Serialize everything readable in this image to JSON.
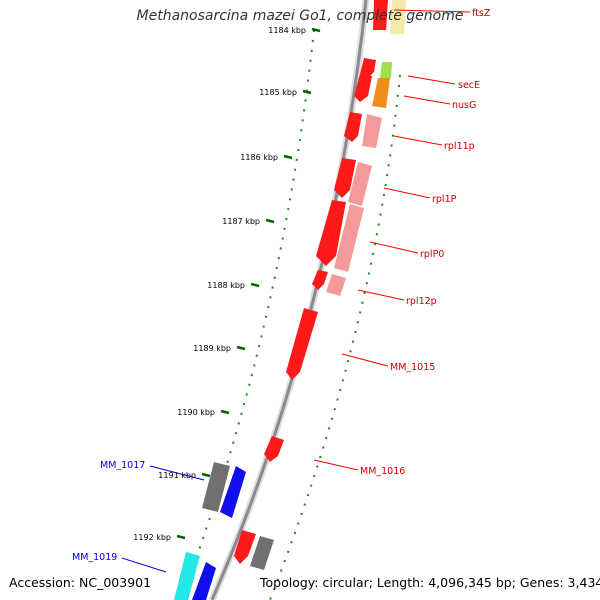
{
  "title": "Methanosarcina mazei Go1, complete genome",
  "accession": "Accession: NC_003901",
  "summary": "Topology: circular; Length: 4,096,345 bp; Genes: 3,434",
  "colors": {
    "backbone": "#8a8a8a",
    "tick": "#006400",
    "forward_gene": "#ff0000",
    "reverse_gene": "#ff0000",
    "rna_gene": "#f49a9a",
    "label_red": "#cc0000",
    "label_blue": "#0000cc"
  },
  "ticks": [
    {
      "label": "1184 kbp"
    },
    {
      "label": "1185 kbp"
    },
    {
      "label": "1186 kbp"
    },
    {
      "label": "1187 kbp"
    },
    {
      "label": "1188 kbp"
    },
    {
      "label": "1189 kbp"
    },
    {
      "label": "1190 kbp"
    },
    {
      "label": "1191 kbp"
    },
    {
      "label": "1192 kbp"
    }
  ],
  "gene_labels": [
    {
      "name": "ftsZ",
      "color": "#cc0000"
    },
    {
      "name": "secE",
      "color": "#cc0000"
    },
    {
      "name": "nusG",
      "color": "#cc0000"
    },
    {
      "name": "rpl11p",
      "color": "#cc0000"
    },
    {
      "name": "rpl1P",
      "color": "#cc0000"
    },
    {
      "name": "rplP0",
      "color": "#cc0000"
    },
    {
      "name": "rpl12p",
      "color": "#cc0000"
    },
    {
      "name": "MM_1015",
      "color": "#cc0000"
    },
    {
      "name": "MM_1016",
      "color": "#cc0000"
    },
    {
      "name": "MM_1017",
      "color": "#0000cc"
    },
    {
      "name": "MM_1019",
      "color": "#0000cc"
    }
  ]
}
